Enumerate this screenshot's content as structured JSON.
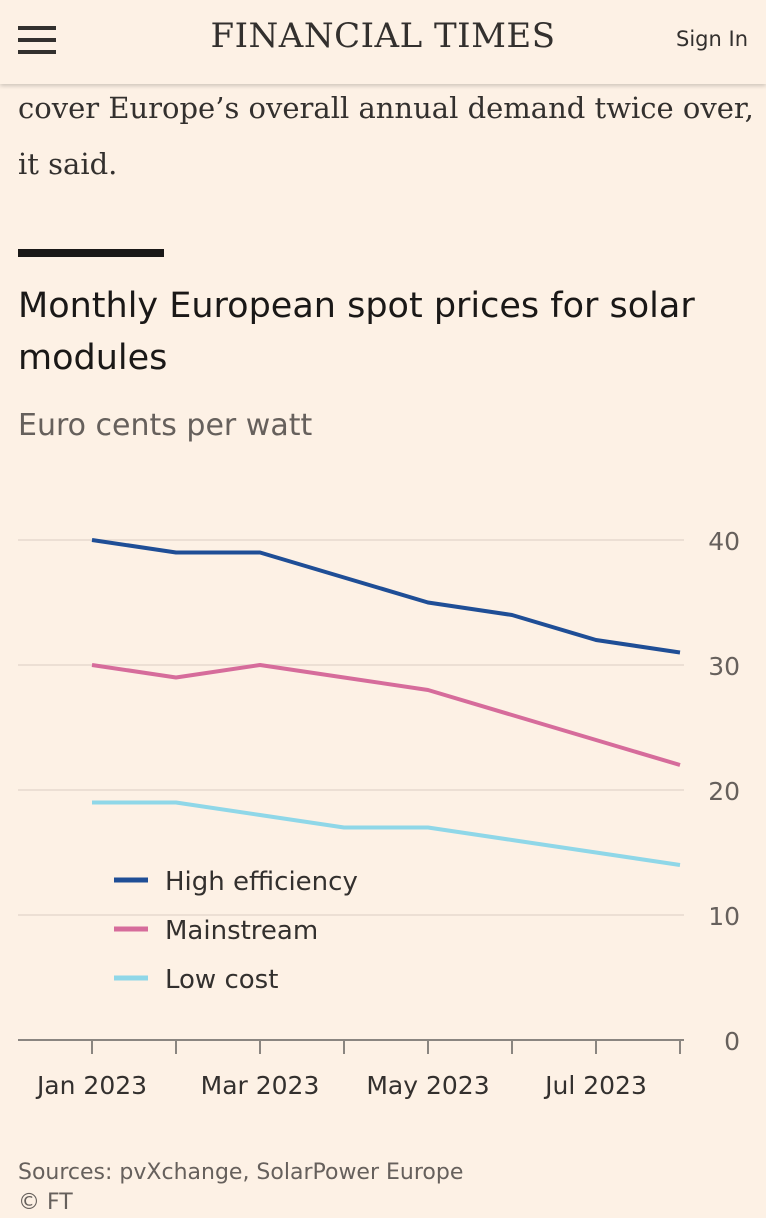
{
  "header": {
    "brand": "FINANCIAL TIMES",
    "signin": "Sign In",
    "menu_icon": "hamburger-icon"
  },
  "article": {
    "text_fragment": "cover Europe’s overall annual demand twice over, it said."
  },
  "chart_data": {
    "type": "line",
    "title": "Monthly European spot prices for solar modules",
    "subtitle": "Euro cents per watt",
    "x": [
      "Jan 2023",
      "Feb 2023",
      "Mar 2023",
      "Apr 2023",
      "May 2023",
      "Jun 2023",
      "Jul 2023",
      "Aug 2023"
    ],
    "x_tick_labels": [
      "Jan 2023",
      "Mar 2023",
      "May 2023",
      "Jul 2023"
    ],
    "y_ticks": [
      0,
      10,
      20,
      30,
      40
    ],
    "ylim": [
      0,
      40
    ],
    "y_axis_side": "right",
    "grid": true,
    "legend_placement": "bottom-left",
    "series": [
      {
        "name": "High efficiency",
        "color": "#1f4e96",
        "values": [
          40,
          39,
          39,
          37,
          35,
          34,
          32,
          31
        ]
      },
      {
        "name": "Mainstream",
        "color": "#d66c9b",
        "values": [
          30,
          29,
          30,
          29,
          28,
          26,
          24,
          22
        ]
      },
      {
        "name": "Low cost",
        "color": "#8fd7e8",
        "values": [
          19,
          19,
          18,
          17,
          17,
          16,
          15,
          14
        ]
      }
    ],
    "source": "Sources: pvXchange, SolarPower Europe",
    "credit": "© FT"
  }
}
